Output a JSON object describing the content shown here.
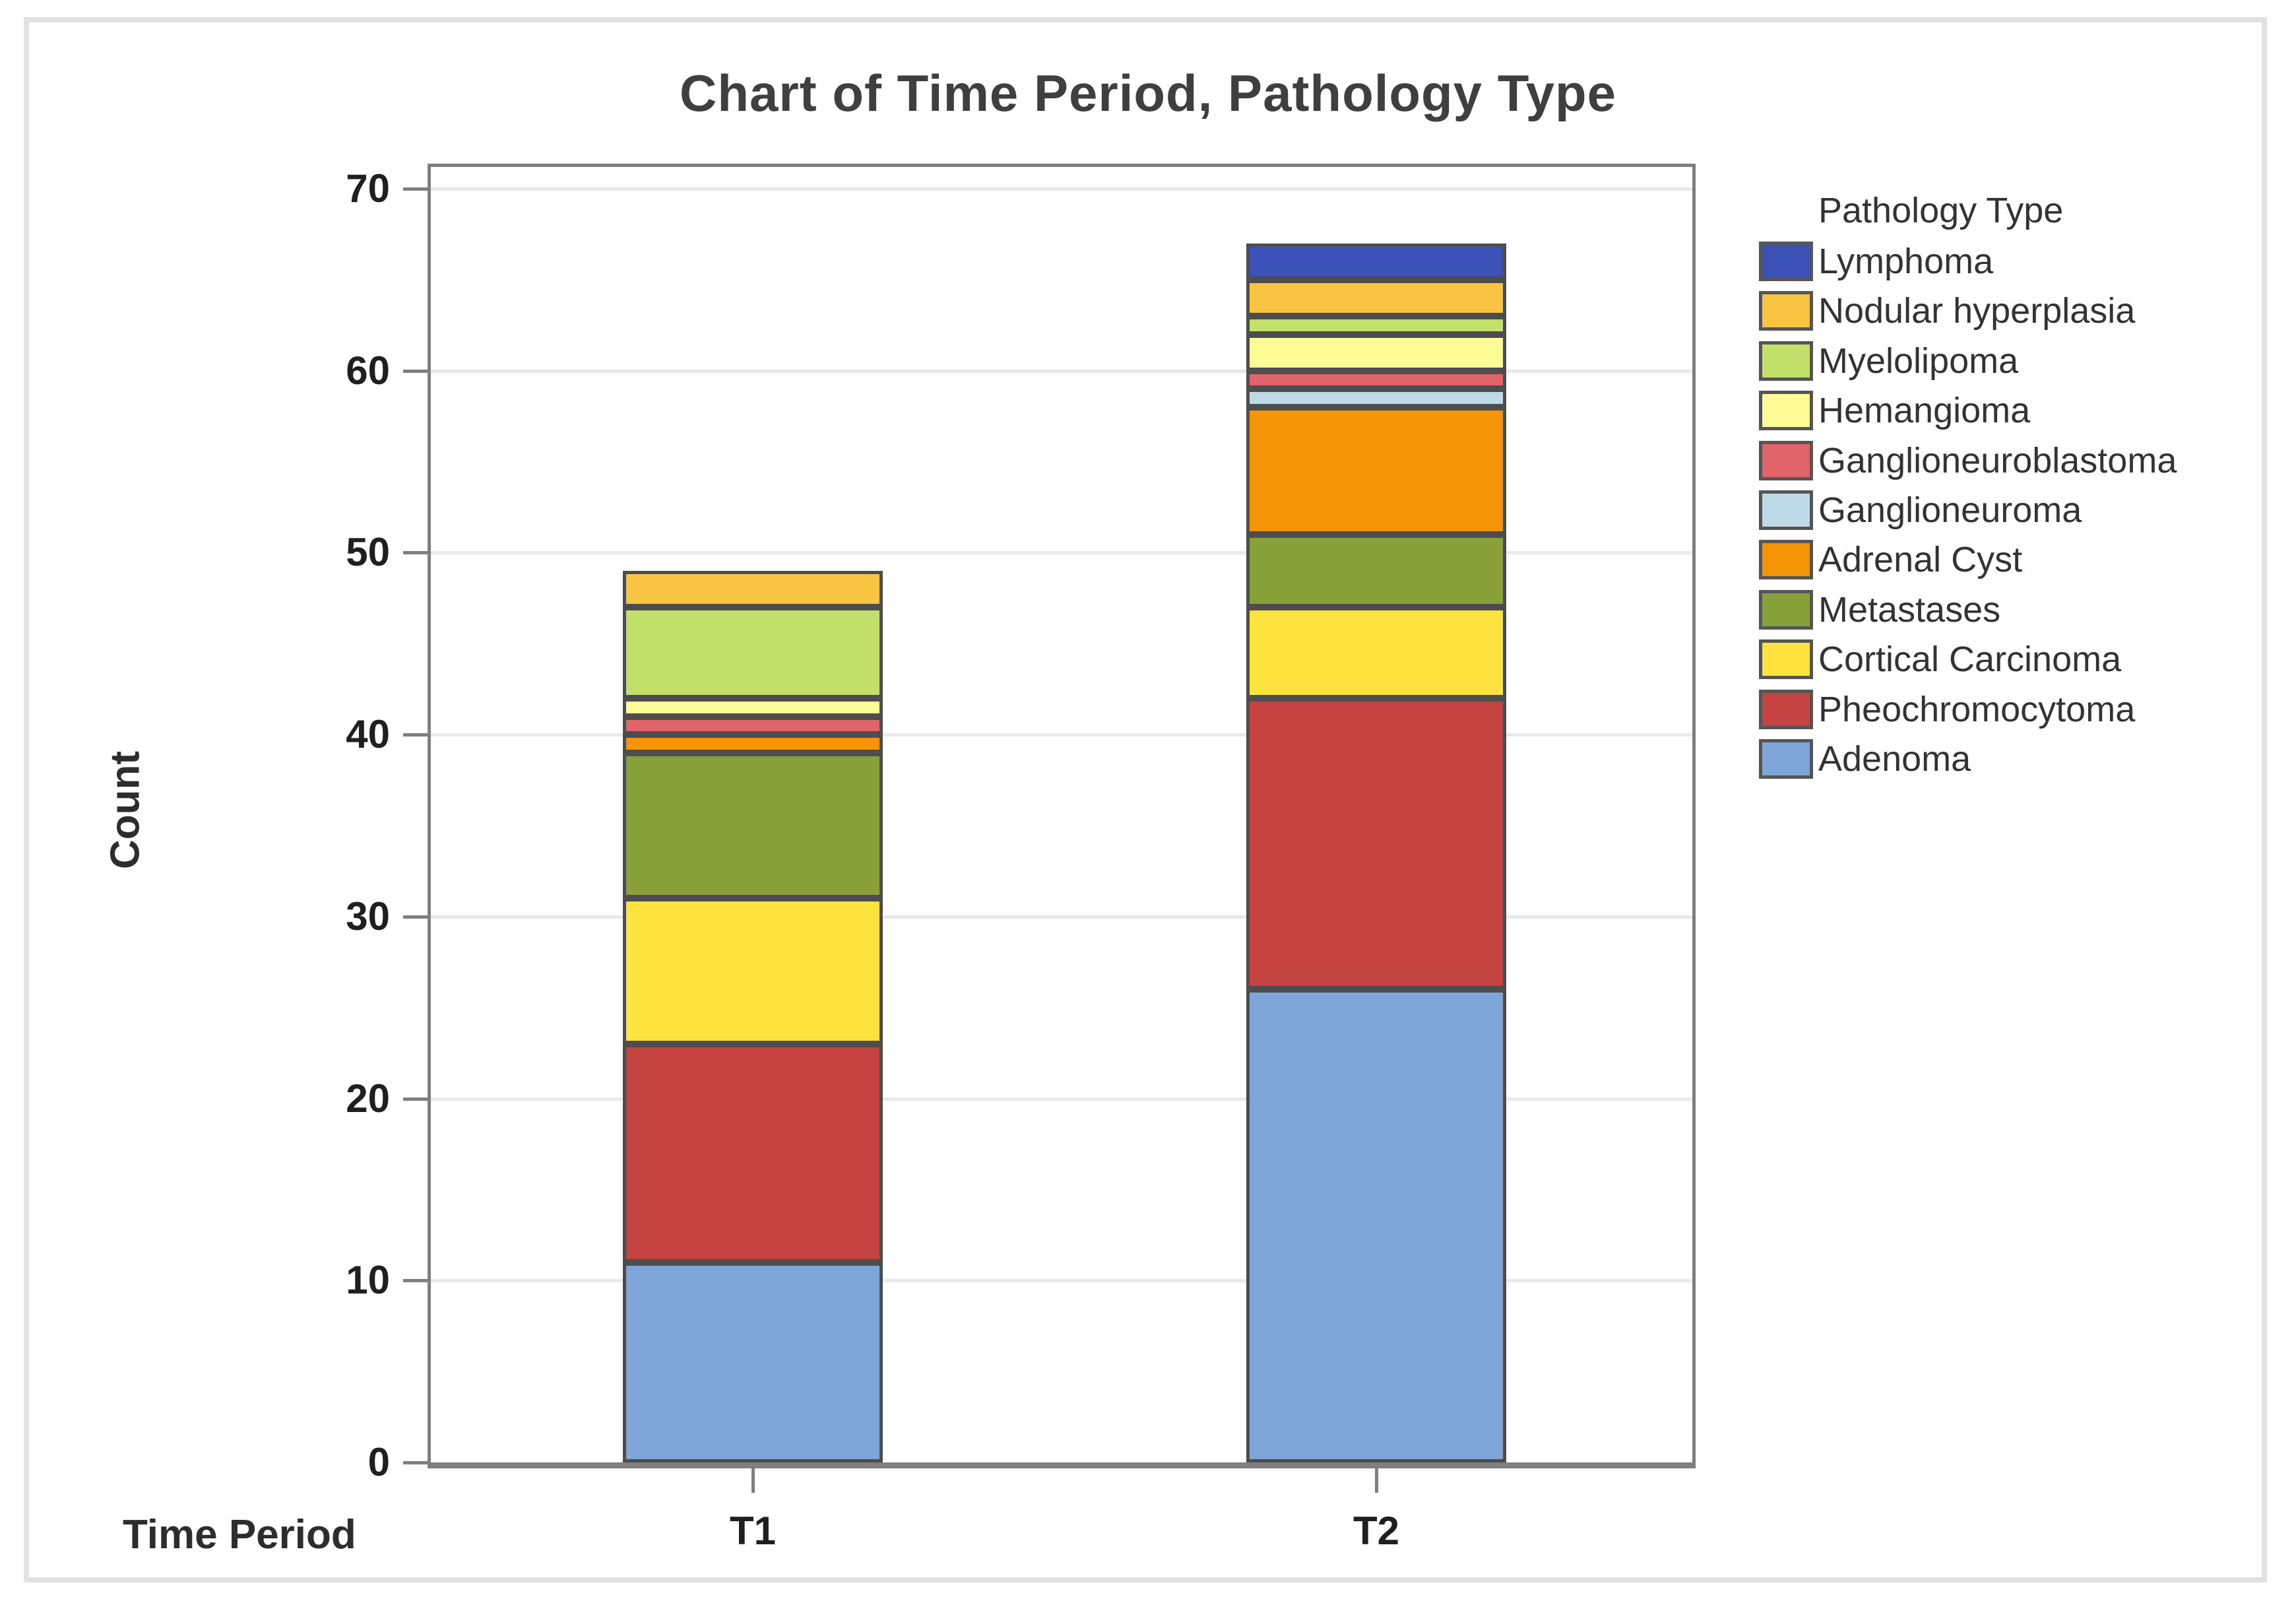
{
  "title": "Chart of Time Period, Pathology Type",
  "axes": {
    "x_label": "Time Period",
    "y_label": "Count",
    "categories": [
      "T1",
      "T2"
    ],
    "y_ticks": [
      0,
      10,
      20,
      30,
      40,
      50,
      60,
      70
    ]
  },
  "legend": {
    "title": "Pathology Type",
    "items_top_to_bottom": [
      "Lymphoma",
      "Nodular hyperplasia",
      "Myelolipoma",
      "Hemangioma",
      "Ganglioneuroblastoma",
      "Ganglioneuroma",
      "Adrenal Cyst",
      "Metastases",
      "Cortical Carcinoma",
      "Pheochromocytoma",
      "Adenoma"
    ]
  },
  "colors": {
    "grid": "#e9e9e9",
    "axis": "#7f7f7f",
    "segment_border": "#4d4d4d",
    "text_dark": "#1f1f1f",
    "title_gray": "#3f3f3f"
  },
  "chart_data": {
    "type": "bar",
    "subtype": "stacked-vertical",
    "title": "Chart of Time Period, Pathology Type",
    "xlabel": "Time Period",
    "ylabel": "Count",
    "categories": [
      "T1",
      "T2"
    ],
    "ylim": [
      0,
      70
    ],
    "yticks": [
      0,
      10,
      20,
      30,
      40,
      50,
      60,
      70
    ],
    "grid": "horizontal",
    "legend_title": "Pathology Type",
    "legend_position": "right",
    "stack_order": "bottom-to-top",
    "series": [
      {
        "name": "Adenoma",
        "color": "#7ea6d8",
        "values": [
          11,
          26
        ]
      },
      {
        "name": "Pheochromocytoma",
        "color": "#c4423f",
        "values": [
          12,
          16
        ]
      },
      {
        "name": "Cortical Carcinoma",
        "color": "#fee33e",
        "values": [
          8,
          5
        ]
      },
      {
        "name": "Metastases",
        "color": "#88a239",
        "values": [
          8,
          4
        ]
      },
      {
        "name": "Adrenal Cyst",
        "color": "#f59407",
        "values": [
          1,
          7
        ]
      },
      {
        "name": "Ganglioneuroma",
        "color": "#bedae7",
        "values": [
          0,
          1
        ]
      },
      {
        "name": "Ganglioneuroblastoma",
        "color": "#e0646a",
        "values": [
          1,
          1
        ]
      },
      {
        "name": "Hemangioma",
        "color": "#fdfb96",
        "values": [
          1,
          2
        ]
      },
      {
        "name": "Myelolipoma",
        "color": "#c3e16a",
        "values": [
          5,
          1
        ]
      },
      {
        "name": "Nodular hyperplasia",
        "color": "#fac443",
        "values": [
          2,
          2
        ]
      },
      {
        "name": "Lymphoma",
        "color": "#3c51b8",
        "values": [
          0,
          2
        ]
      }
    ],
    "totals": [
      49,
      67
    ]
  }
}
